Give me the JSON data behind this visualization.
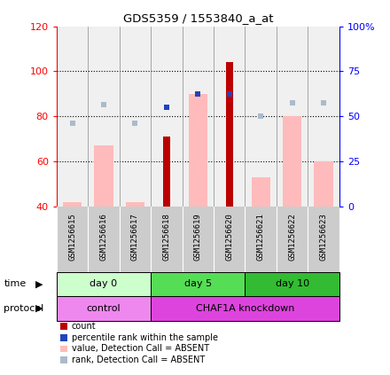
{
  "title": "GDS5359 / 1553840_a_at",
  "samples": [
    "GSM1256615",
    "GSM1256616",
    "GSM1256617",
    "GSM1256618",
    "GSM1256619",
    "GSM1256620",
    "GSM1256621",
    "GSM1256622",
    "GSM1256623"
  ],
  "count_values": [
    null,
    null,
    null,
    71,
    null,
    104,
    null,
    null,
    null
  ],
  "percentile_rank_values": [
    null,
    null,
    null,
    84,
    90,
    90,
    null,
    null,
    null
  ],
  "pink_bar_values": [
    42,
    67,
    42,
    null,
    90,
    null,
    53,
    80,
    60
  ],
  "light_blue_values": [
    77,
    85,
    77,
    null,
    90,
    null,
    80,
    86,
    86
  ],
  "ylim_left": [
    40,
    120
  ],
  "left_ticks": [
    40,
    60,
    80,
    100,
    120
  ],
  "right_ticks": [
    0,
    25,
    50,
    75,
    100
  ],
  "right_tick_labels": [
    "0",
    "25",
    "50",
    "75",
    "100%"
  ],
  "time_groups": [
    {
      "label": "day 0",
      "start": 0,
      "end": 3,
      "color": "#ccffcc"
    },
    {
      "label": "day 5",
      "start": 3,
      "end": 6,
      "color": "#55dd55"
    },
    {
      "label": "day 10",
      "start": 6,
      "end": 9,
      "color": "#33bb33"
    }
  ],
  "protocol_groups": [
    {
      "label": "control",
      "start": 0,
      "end": 3,
      "color": "#ee88ee"
    },
    {
      "label": "CHAF1A knockdown",
      "start": 3,
      "end": 9,
      "color": "#dd44dd"
    }
  ],
  "bar_fill_color": "#bb0000",
  "pink_color": "#ffbbbb",
  "light_blue_color": "#aabbcc",
  "blue_dot_color": "#2244bb",
  "sample_label_bg": "#cccccc",
  "legend_items": [
    {
      "label": "count",
      "color": "#bb0000"
    },
    {
      "label": "percentile rank within the sample",
      "color": "#2244bb"
    },
    {
      "label": "value, Detection Call = ABSENT",
      "color": "#ffbbbb"
    },
    {
      "label": "rank, Detection Call = ABSENT",
      "color": "#aabbcc"
    }
  ]
}
